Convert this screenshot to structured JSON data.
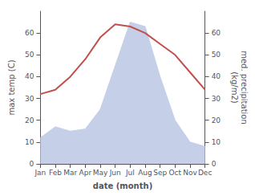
{
  "chart_data": {
    "type": "line",
    "xlabel": "date (month)",
    "ylabel": "max temp (C)",
    "y2label": "med. precipitation\n(kg/m2)",
    "categories": [
      "Jan",
      "Feb",
      "Mar",
      "Apr",
      "May",
      "Jun",
      "Jul",
      "Aug",
      "Sep",
      "Oct",
      "Nov",
      "Dec"
    ],
    "series": [
      {
        "type": "area",
        "color": "#c5d0e8",
        "axis": "y2",
        "values": [
          12,
          17,
          15,
          16,
          25,
          45,
          65,
          63,
          40,
          20,
          10,
          8
        ]
      },
      {
        "type": "line",
        "color": "#c0504d",
        "values": [
          32,
          34,
          40,
          48,
          58,
          64,
          63,
          60,
          55,
          50,
          42,
          34
        ]
      }
    ],
    "ylim": [
      0,
      70
    ],
    "yticks": [
      0,
      10,
      20,
      30,
      40,
      50,
      60
    ],
    "y2lim": [
      0,
      70
    ],
    "y2ticks": [
      0,
      10,
      20,
      30,
      40,
      50,
      60
    ],
    "grid": false
  }
}
